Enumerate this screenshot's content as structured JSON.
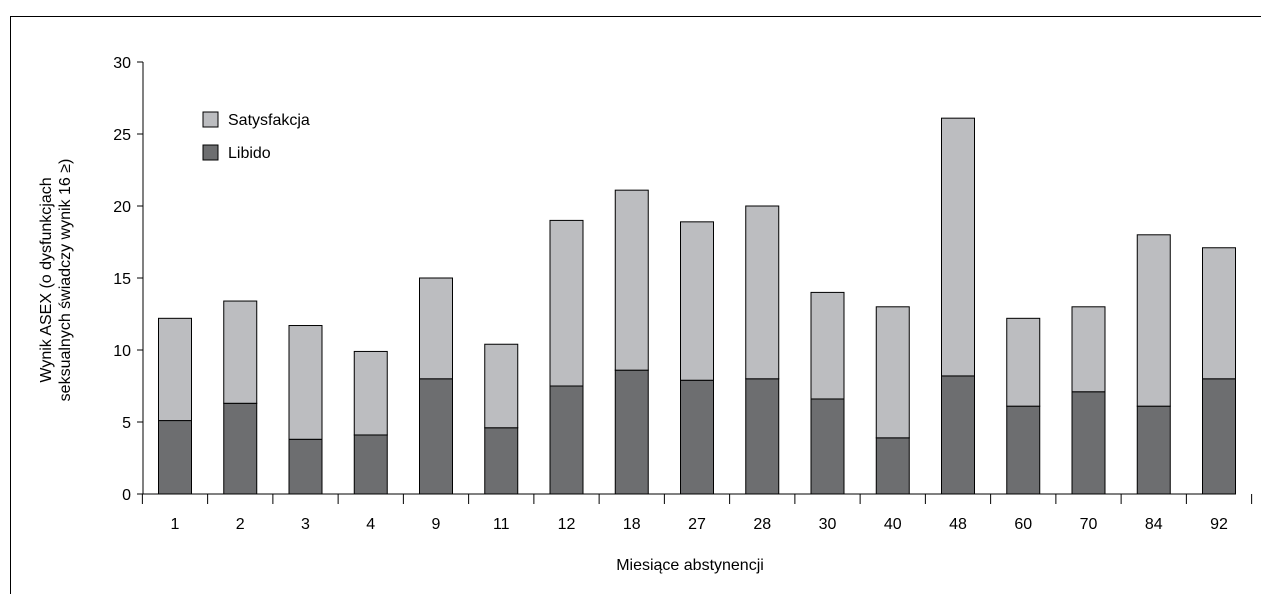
{
  "chart_data": {
    "type": "bar",
    "stacked": true,
    "categories": [
      "1",
      "2",
      "3",
      "4",
      "9",
      "11",
      "12",
      "18",
      "27",
      "28",
      "30",
      "40",
      "48",
      "60",
      "70",
      "84",
      "92"
    ],
    "series": [
      {
        "name": "Libido",
        "color": "#6d6e70",
        "values": [
          5.1,
          6.3,
          3.8,
          4.1,
          8.0,
          4.6,
          7.5,
          8.6,
          7.9,
          8.0,
          6.6,
          3.9,
          8.2,
          6.1,
          7.1,
          6.1,
          8.0
        ]
      },
      {
        "name": "Satysfakcja",
        "color": "#bcbdc0",
        "values": [
          7.1,
          7.1,
          7.9,
          5.8,
          7.0,
          5.8,
          11.5,
          12.5,
          11.0,
          12.0,
          7.4,
          9.1,
          17.9,
          6.1,
          5.9,
          11.9,
          9.1
        ]
      }
    ],
    "xlabel": "Miesiące abstynencji",
    "ylabel_lines": [
      "Wynik ASEX (o dysfunkcjach",
      "seksualnych świadczy wynik 16 ≥)"
    ],
    "ylim": [
      0,
      30
    ],
    "yticks": [
      0,
      5,
      10,
      15,
      20,
      25,
      30
    ],
    "legend": {
      "position": "top-left",
      "order": [
        "Satysfakcja",
        "Libido"
      ]
    },
    "grid": false
  }
}
